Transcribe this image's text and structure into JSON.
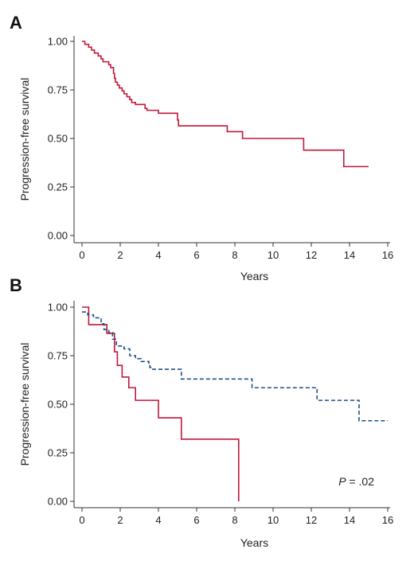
{
  "chart_data": [
    {
      "panel": "A",
      "type": "line",
      "step": true,
      "xlabel": "Years",
      "ylabel": "Progression-free survival",
      "xlim": [
        0,
        16
      ],
      "ylim": [
        0,
        1
      ],
      "xticks": [
        "0",
        "2",
        "4",
        "6",
        "8",
        "10",
        "12",
        "14",
        "16"
      ],
      "yticks": [
        "0.00",
        "0.25",
        "0.50",
        "0.75",
        "1.00"
      ],
      "grid": false,
      "series": [
        {
          "color": "#c0183a",
          "dash": "solid",
          "points": [
            [
              0,
              1.0
            ],
            [
              0.15,
              0.985
            ],
            [
              0.35,
              0.97
            ],
            [
              0.5,
              0.955
            ],
            [
              0.65,
              0.94
            ],
            [
              0.85,
              0.925
            ],
            [
              1.0,
              0.91
            ],
            [
              1.1,
              0.895
            ],
            [
              1.4,
              0.88
            ],
            [
              1.5,
              0.865
            ],
            [
              1.65,
              0.835
            ],
            [
              1.7,
              0.81
            ],
            [
              1.75,
              0.79
            ],
            [
              1.85,
              0.775
            ],
            [
              1.95,
              0.76
            ],
            [
              2.1,
              0.745
            ],
            [
              2.2,
              0.73
            ],
            [
              2.35,
              0.715
            ],
            [
              2.5,
              0.7
            ],
            [
              2.6,
              0.685
            ],
            [
              2.8,
              0.675
            ],
            [
              3.3,
              0.655
            ],
            [
              3.4,
              0.645
            ],
            [
              4.0,
              0.63
            ],
            [
              5.0,
              0.595
            ],
            [
              5.05,
              0.565
            ],
            [
              7.6,
              0.535
            ],
            [
              8.4,
              0.5
            ],
            [
              11.6,
              0.44
            ],
            [
              13.7,
              0.355
            ],
            [
              15.0,
              0.355
            ]
          ]
        }
      ]
    },
    {
      "panel": "B",
      "type": "line",
      "step": true,
      "xlabel": "Years",
      "ylabel": "Progression-free survival",
      "xlim": [
        0,
        16
      ],
      "ylim": [
        0,
        1
      ],
      "xticks": [
        "0",
        "2",
        "4",
        "6",
        "8",
        "10",
        "12",
        "14",
        "16"
      ],
      "yticks": [
        "0.00",
        "0.25",
        "0.50",
        "0.75",
        "1.00"
      ],
      "grid": false,
      "annotation": {
        "italic": "P",
        "text": " = .02"
      },
      "series": [
        {
          "color": "#c0183a",
          "dash": "solid",
          "points": [
            [
              0,
              1.0
            ],
            [
              0.35,
              0.91
            ],
            [
              1.3,
              0.865
            ],
            [
              1.7,
              0.77
            ],
            [
              1.85,
              0.7
            ],
            [
              2.1,
              0.64
            ],
            [
              2.45,
              0.585
            ],
            [
              2.8,
              0.52
            ],
            [
              4.0,
              0.43
            ],
            [
              5.2,
              0.32
            ],
            [
              8.2,
              0.0
            ]
          ]
        },
        {
          "color": "#1f4f86",
          "dash": "dashed",
          "points": [
            [
              0,
              0.975
            ],
            [
              0.3,
              0.96
            ],
            [
              0.6,
              0.945
            ],
            [
              1.0,
              0.915
            ],
            [
              1.15,
              0.885
            ],
            [
              1.4,
              0.87
            ],
            [
              1.6,
              0.835
            ],
            [
              1.8,
              0.8
            ],
            [
              2.2,
              0.785
            ],
            [
              2.5,
              0.75
            ],
            [
              2.8,
              0.735
            ],
            [
              3.1,
              0.72
            ],
            [
              3.5,
              0.705
            ],
            [
              3.55,
              0.69
            ],
            [
              3.6,
              0.68
            ],
            [
              5.2,
              0.63
            ],
            [
              8.9,
              0.585
            ],
            [
              12.3,
              0.52
            ],
            [
              14.5,
              0.415
            ],
            [
              16.0,
              0.415
            ]
          ]
        }
      ]
    }
  ]
}
